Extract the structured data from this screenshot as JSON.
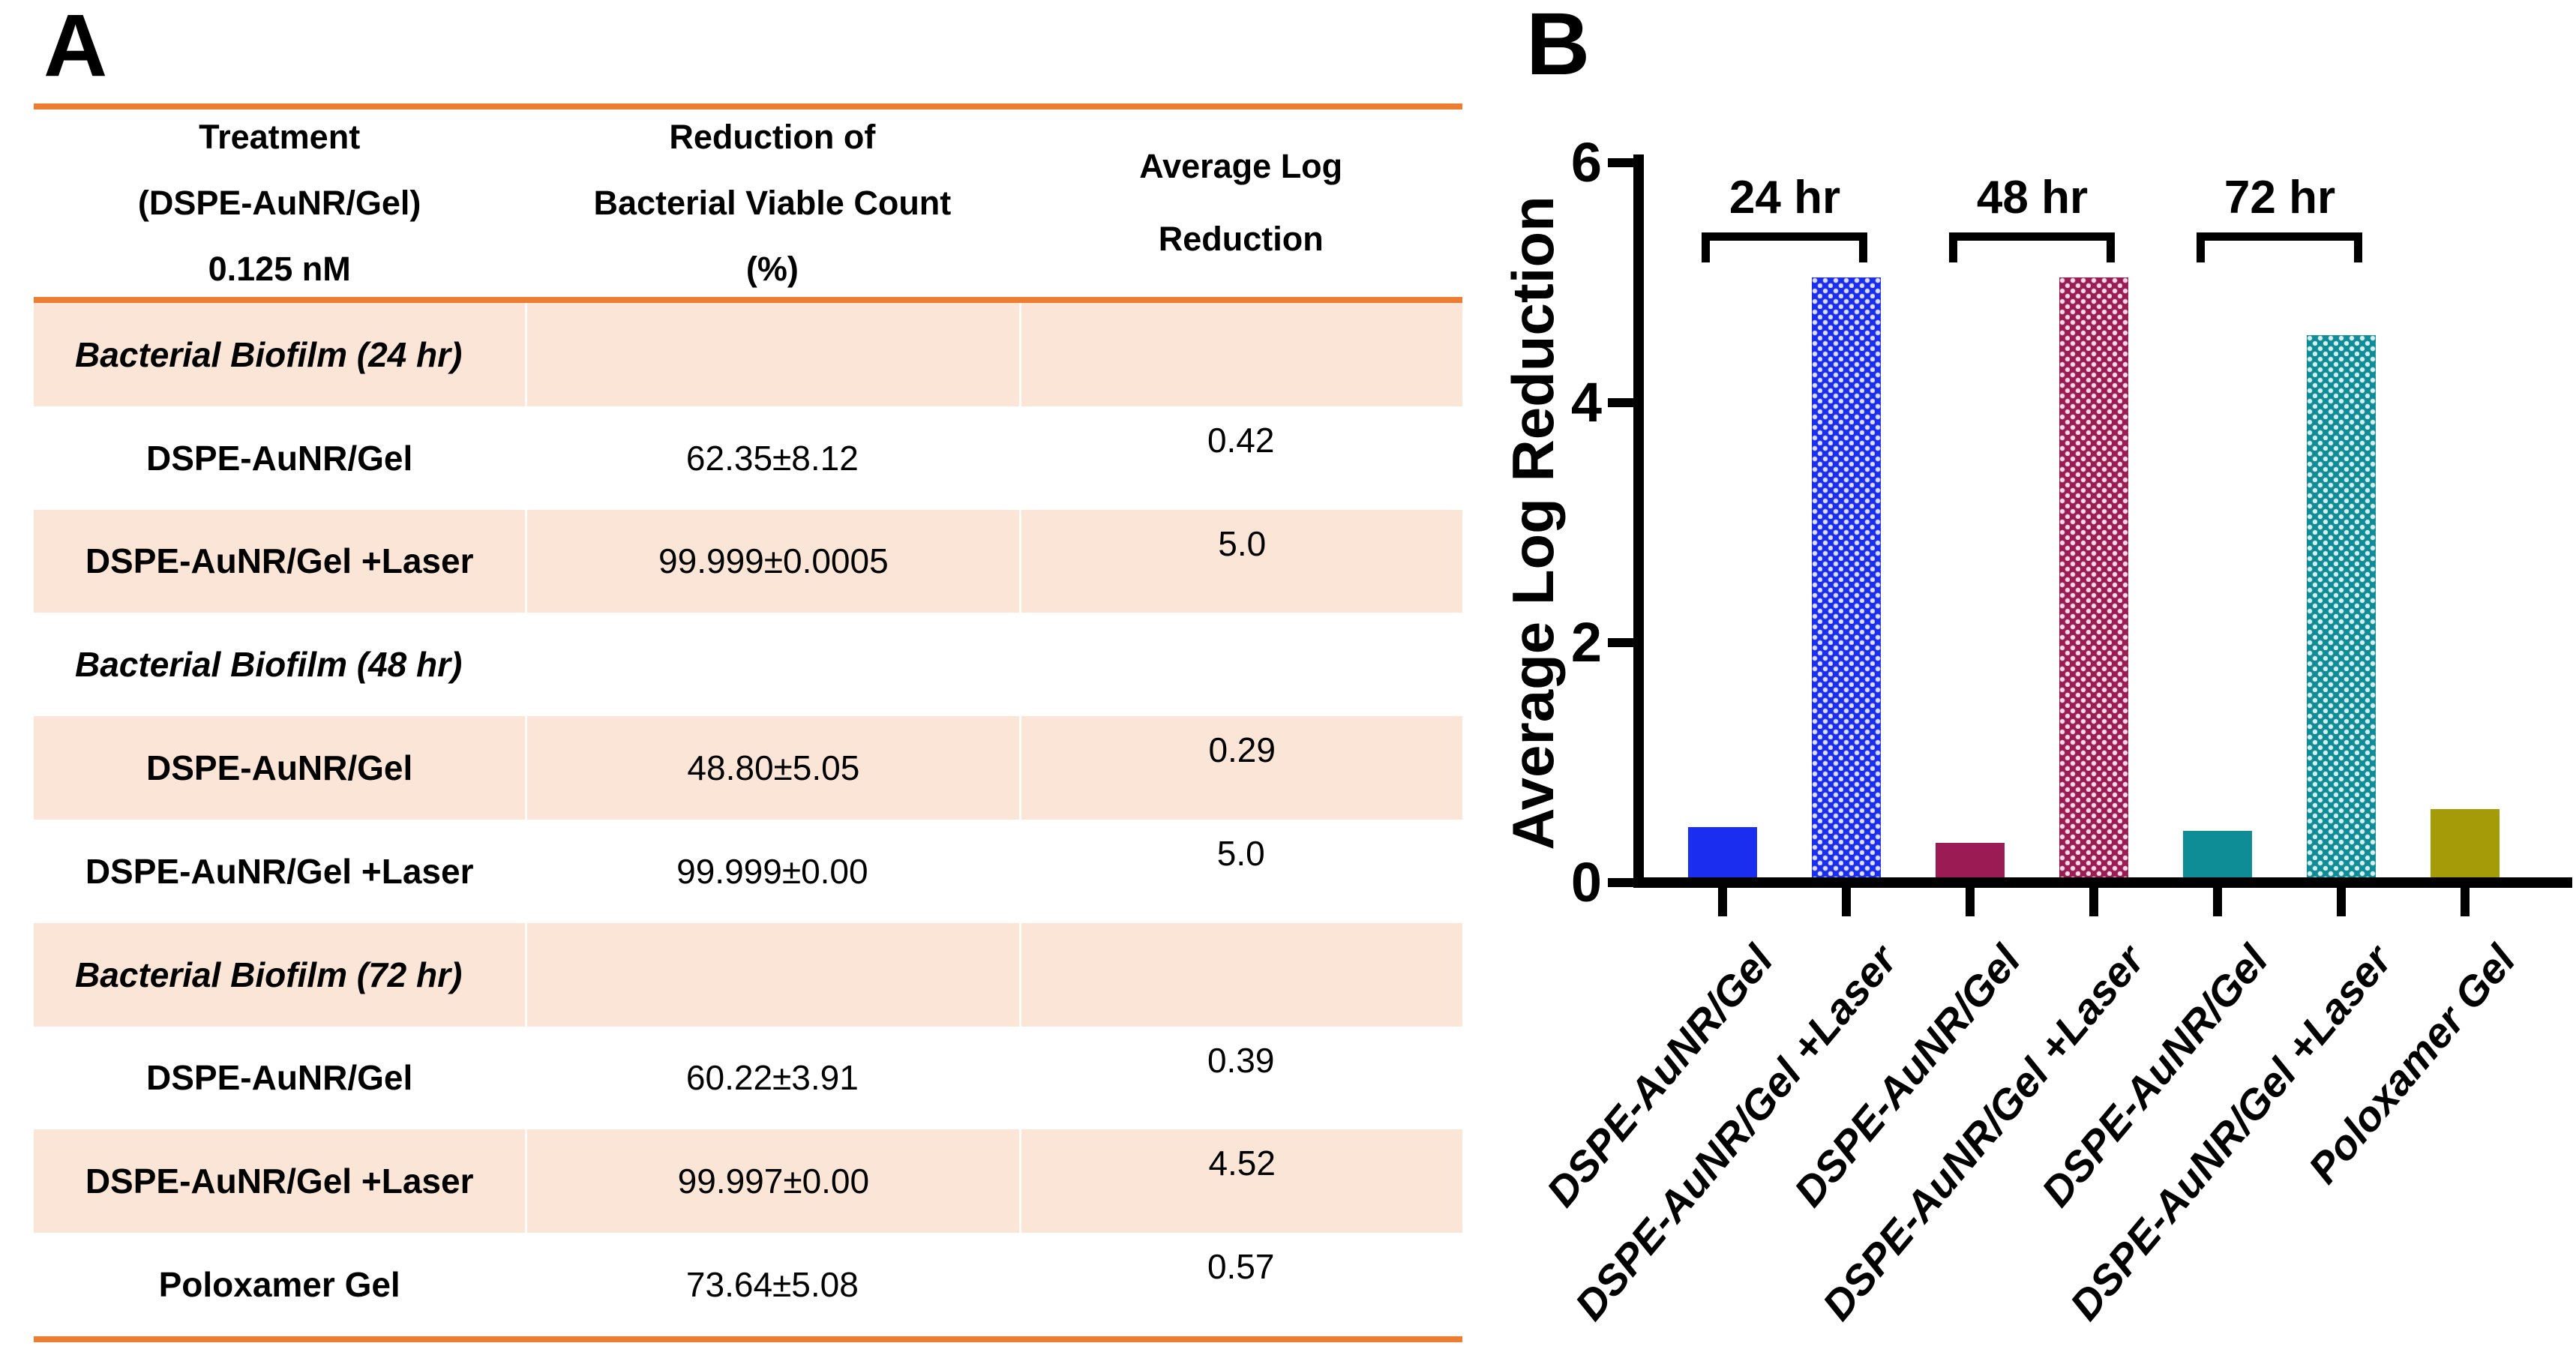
{
  "panel_a": {
    "label": "A",
    "table": {
      "header_cols": [
        {
          "lines": [
            "Treatment",
            "(DSPE-AuNR/Gel)",
            "0.125 nM"
          ]
        },
        {
          "lines": [
            "Reduction of",
            "Bacterial Viable Count",
            "(%)"
          ]
        },
        {
          "lines": [
            "Average Log",
            "Reduction"
          ]
        }
      ],
      "rows": [
        {
          "type": "section",
          "label": "Bacterial Biofilm (24 hr)",
          "shaded": true
        },
        {
          "type": "data",
          "treatment": "DSPE-AuNR/Gel",
          "reduction": "62.35±8.12",
          "log_reduction": "0.42",
          "shaded": false
        },
        {
          "type": "data",
          "treatment": "DSPE-AuNR/Gel +Laser",
          "reduction": "99.999±0.0005",
          "log_reduction": "5.0",
          "shaded": true
        },
        {
          "type": "section",
          "label": "Bacterial Biofilm (48 hr)",
          "shaded": false
        },
        {
          "type": "data",
          "treatment": "DSPE-AuNR/Gel",
          "reduction": "48.80±5.05",
          "log_reduction": "0.29",
          "shaded": true
        },
        {
          "type": "data",
          "treatment": "DSPE-AuNR/Gel +Laser",
          "reduction": "99.999±0.00",
          "log_reduction": "5.0",
          "shaded": false
        },
        {
          "type": "section",
          "label": "Bacterial Biofilm (72 hr)",
          "shaded": true
        },
        {
          "type": "data",
          "treatment": "DSPE-AuNR/Gel",
          "reduction": "60.22±3.91",
          "log_reduction": "0.39",
          "shaded": false
        },
        {
          "type": "data",
          "treatment": "DSPE-AuNR/Gel +Laser",
          "reduction": "99.997±0.00",
          "log_reduction": "4.52",
          "shaded": true
        },
        {
          "type": "data",
          "treatment": "Poloxamer Gel",
          "reduction": "73.64±5.08",
          "log_reduction": "0.57",
          "shaded": false
        }
      ],
      "colors": {
        "rule_orange": "#ED7D31",
        "row_shade": "#FBE5D6",
        "text": "#000000"
      }
    }
  },
  "panel_b": {
    "label": "B"
  },
  "chart_data": {
    "type": "bar",
    "title": "",
    "xlabel": "",
    "ylabel": "Average Log Reduction",
    "ylim": [
      0,
      6
    ],
    "yticks": [
      0,
      2,
      4,
      6
    ],
    "grid": false,
    "legend": "none",
    "categories": [
      "DSPE-AuNR/Gel",
      "DSPE-AuNR/Gel +Laser",
      "DSPE-AuNR/Gel",
      "DSPE-AuNR/Gel +Laser",
      "DSPE-AuNR/Gel",
      "DSPE-AuNR/Gel +Laser",
      "Poloxamer Gel"
    ],
    "values": [
      0.42,
      5.0,
      0.29,
      5.0,
      0.39,
      4.52,
      0.57
    ],
    "bar_colors": [
      "#1B2EF0",
      "#1B2EF0",
      "#9B1C55",
      "#9B1C55",
      "#0F8D96",
      "#0F8D96",
      "#A59B09"
    ],
    "bar_dotted": [
      false,
      true,
      false,
      true,
      false,
      true,
      false
    ],
    "group_brackets": [
      {
        "label": "24 hr",
        "from": 0,
        "to": 1
      },
      {
        "label": "48 hr",
        "from": 2,
        "to": 3
      },
      {
        "label": "72 hr",
        "from": 4,
        "to": 5
      }
    ],
    "axis_color": "#000000"
  }
}
